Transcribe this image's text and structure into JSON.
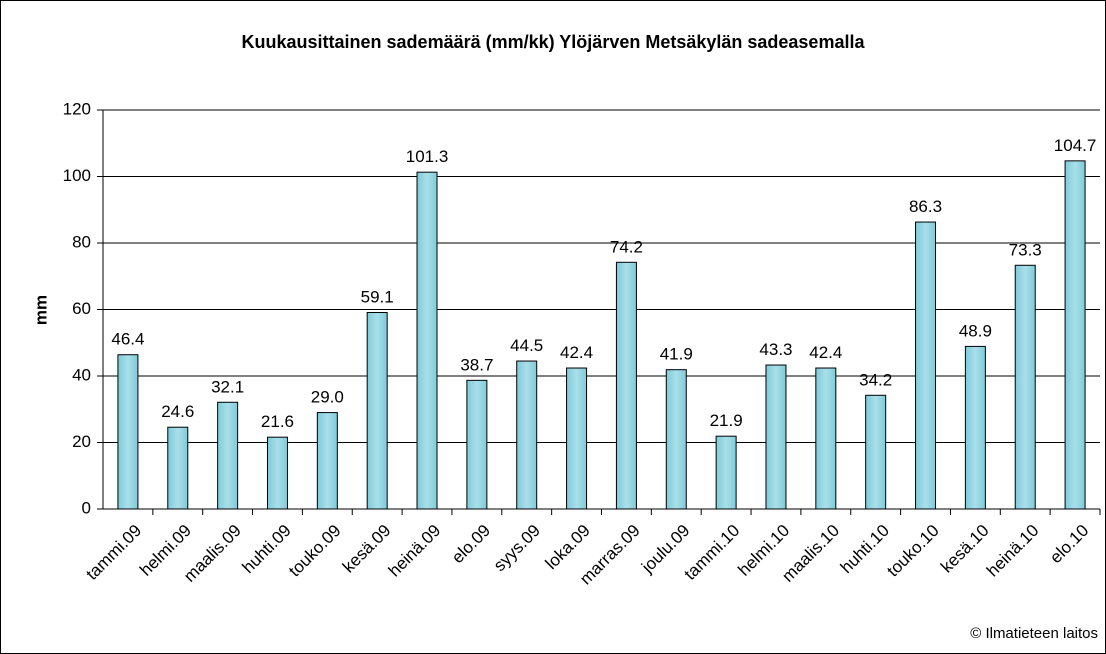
{
  "chart_data": {
    "type": "bar",
    "title": "Kuukausittainen sademäärä (mm/kk) Ylöjärven Metsäkylän sadeasemalla",
    "y_label": "mm",
    "source": "© Ilmatieteen laitos",
    "categories": [
      "tammi.09",
      "helmi.09",
      "maalis.09",
      "huhti.09",
      "touko.09",
      "kesä.09",
      "heinä.09",
      "elo.09",
      "syys.09",
      "loka.09",
      "marras.09",
      "joulu.09",
      "tammi.10",
      "helmi.10",
      "maalis.10",
      "huhti.10",
      "touko.10",
      "kesä.10",
      "heinä.10",
      "elo.10"
    ],
    "values": [
      46.4,
      24.6,
      32.1,
      21.6,
      29.0,
      59.1,
      101.3,
      38.7,
      44.5,
      42.4,
      74.2,
      41.9,
      21.9,
      43.3,
      42.4,
      34.2,
      86.3,
      48.9,
      73.3,
      104.7
    ],
    "value_labels": [
      "46.4",
      "24.6",
      "32.1",
      "21.6",
      "29.0",
      "59.1",
      "101.3",
      "38.7",
      "44.5",
      "42.4",
      "74.2",
      "41.9",
      "21.9",
      "43.3",
      "42.4",
      "34.2",
      "86.3",
      "48.9",
      "73.3",
      "104.7"
    ],
    "color": "#a9dfe9",
    "ylim": [
      0,
      120
    ],
    "yticks": [
      0,
      20,
      40,
      60,
      80,
      100,
      120
    ],
    "grid": true
  }
}
